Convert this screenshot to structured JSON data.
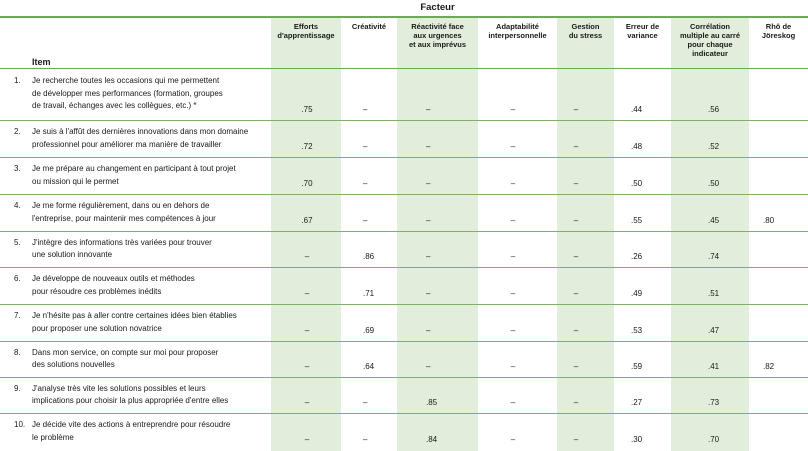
{
  "table": {
    "factor_header": "Facteur",
    "item_header": "Item",
    "columns": [
      "Efforts\nd'apprentissage",
      "Créativité",
      "Réactivité face\naux urgences\net aux imprévus",
      "Adaptabilité\ninterpersonnelle",
      "Gestion\ndu stress",
      "Erreur de\nvariance",
      "Corrélation\nmultiple au carré\npour chaque\nindicateur",
      "Rhô de\nJöreskog"
    ],
    "rows": [
      {
        "num": "1.",
        "text": "Je recherche toutes les occasions qui me permettent\nde développer mes performances (formation, groupes\nde travail, échanges avec les collègues, etc.) *",
        "cells": [
          ".75",
          "–",
          "–",
          "–",
          "–",
          ".44",
          ".56",
          ""
        ]
      },
      {
        "num": "2.",
        "text": "Je suis à l'affût des dernières innovations dans mon domaine\nprofessionnel pour améliorer ma manière de travailler",
        "cells": [
          ".72",
          "–",
          "–",
          "–",
          "–",
          ".48",
          ".52",
          ""
        ]
      },
      {
        "num": "3.",
        "text": "Je me prépare au changement en participant à tout projet\nou mission qui le permet",
        "cells": [
          ".70",
          "–",
          "–",
          "–",
          "–",
          ".50",
          ".50",
          ""
        ]
      },
      {
        "num": "4.",
        "text": "Je me forme régulièrement, dans ou en dehors de\nl'entreprise, pour maintenir mes compétences à jour",
        "cells": [
          ".67",
          "–",
          "–",
          "–",
          "–",
          ".55",
          ".45",
          ".80"
        ]
      },
      {
        "num": "5.",
        "text": "J'intègre des informations très variées pour trouver\nune solution innovante",
        "cells": [
          "–",
          ".86",
          "–",
          "–",
          "–",
          ".26",
          ".74",
          ""
        ]
      },
      {
        "num": "6.",
        "text": "Je développe de nouveaux outils et méthodes\npour résoudre ces problèmes inédits",
        "cells": [
          "–",
          ".71",
          "–",
          "–",
          "–",
          ".49",
          ".51",
          ""
        ]
      },
      {
        "num": "7.",
        "text": "Je n'hésite pas à aller contre certaines idées bien établies\npour proposer une solution novatrice",
        "cells": [
          "–",
          ".69",
          "–",
          "–",
          "–",
          ".53",
          ".47",
          ""
        ]
      },
      {
        "num": "8.",
        "text": "Dans mon service, on compte sur moi pour proposer\ndes solutions nouvelles",
        "cells": [
          "–",
          ".64",
          "–",
          "–",
          "–",
          ".59",
          ".41",
          ".82"
        ]
      },
      {
        "num": "9.",
        "text": "J'analyse très vite les solutions possibles et leurs\nimplications pour choisir la plus appropriée d'entre elles",
        "cells": [
          "–",
          "–",
          ".85",
          "–",
          "–",
          ".27",
          ".73",
          ""
        ]
      },
      {
        "num": "10.",
        "text": "Je décide vite des actions à entreprendre pour résoudre\nle problème",
        "cells": [
          "–",
          "–",
          ".84",
          "–",
          "–",
          ".30",
          ".70",
          ""
        ]
      }
    ]
  }
}
